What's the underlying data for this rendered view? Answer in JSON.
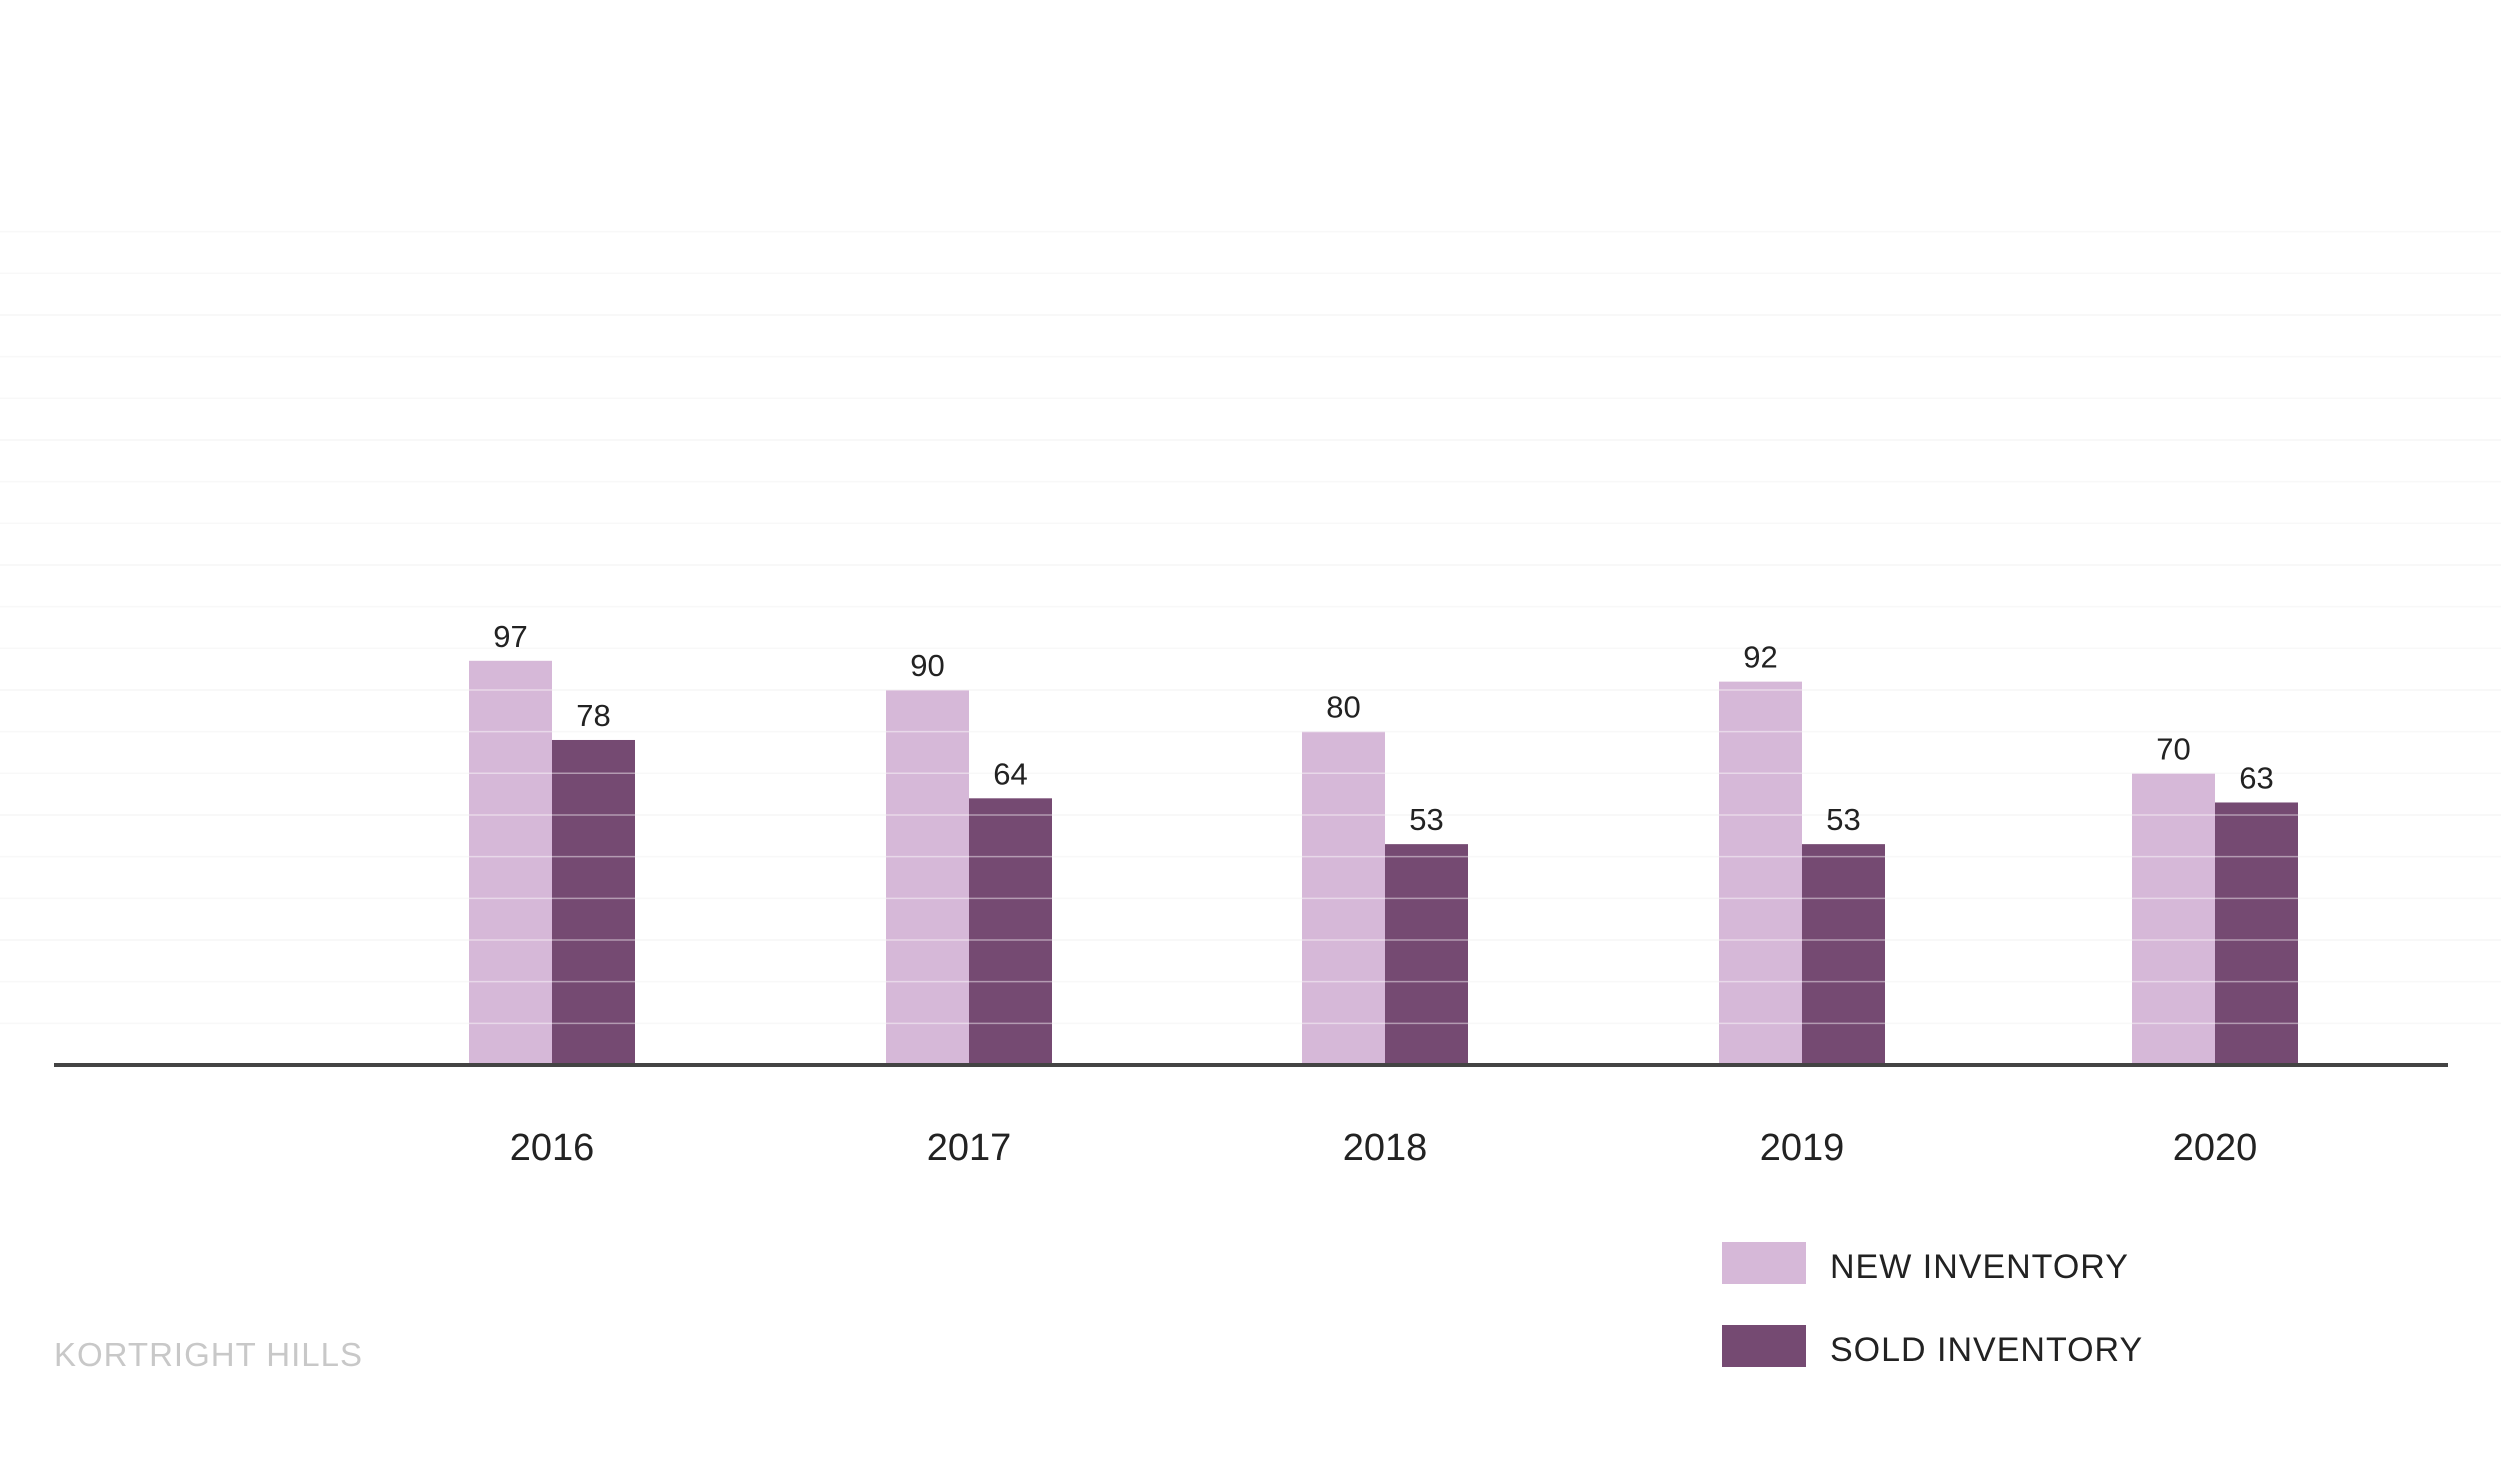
{
  "chart_data": {
    "type": "bar",
    "categories": [
      "2016",
      "2017",
      "2018",
      "2019",
      "2020"
    ],
    "series": [
      {
        "name": "NEW INVENTORY",
        "values": [
          97,
          90,
          80,
          92,
          70
        ],
        "color": "#d6b8d8"
      },
      {
        "name": "SOLD INVENTORY",
        "values": [
          78,
          64,
          53,
          53,
          63
        ],
        "color": "#754a72"
      }
    ],
    "ylim": [
      0,
      200
    ],
    "grid": true,
    "legend_position": "bottom-right",
    "data_labels": true
  },
  "footer": {
    "text": "KORTRIGHT HILLS"
  }
}
